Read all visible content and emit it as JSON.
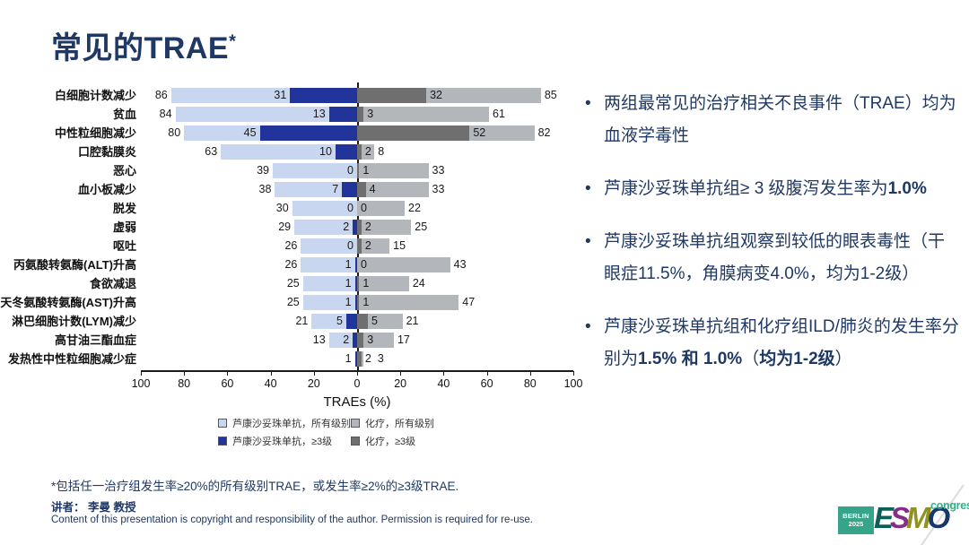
{
  "title": {
    "text": "常见的TRAE",
    "superscript": "*"
  },
  "chart_data": {
    "type": "bar",
    "orientation": "horizontal-butterfly",
    "xlabel": "TRAEs (%)",
    "x_ticks": [
      "100",
      "80",
      "60",
      "40",
      "20",
      "0",
      "20",
      "40",
      "60",
      "80",
      "100"
    ],
    "xlim_each_side": [
      0,
      100
    ],
    "grid": false,
    "legend_position": "bottom",
    "colors": {
      "sac_all": "#c9d6ef",
      "sac_g3": "#21349b",
      "chemo_all": "#b3b6bb",
      "chemo_g3": "#6f6f6f"
    },
    "legend": [
      {
        "key": "sac_all",
        "label": "芦康沙妥珠单抗，所有级别"
      },
      {
        "key": "chemo_all",
        "label": "化疗，所有级别"
      },
      {
        "key": "sac_g3",
        "label": "芦康沙妥珠单抗，≥3级"
      },
      {
        "key": "chemo_g3",
        "label": "化疗，≥3级"
      }
    ],
    "rows": [
      {
        "name": "白细胞计数减少",
        "sac_all": 86,
        "sac_g3": 31,
        "chemo_g3": 32,
        "chemo_all": 85,
        "hide_labels": []
      },
      {
        "name": "贫血",
        "sac_all": 84,
        "sac_g3": 13,
        "chemo_g3": 3,
        "chemo_all": 61,
        "hide_labels": []
      },
      {
        "name": "中性粒细胞减少",
        "sac_all": 80,
        "sac_g3": 45,
        "chemo_g3": 52,
        "chemo_all": 82,
        "hide_labels": []
      },
      {
        "name": "口腔黏膜炎",
        "sac_all": 63,
        "sac_g3": 10,
        "chemo_g3": 2,
        "chemo_all": 8,
        "hide_labels": []
      },
      {
        "name": "恶心",
        "sac_all": 39,
        "sac_g3": 0,
        "chemo_g3": 1,
        "chemo_all": 33,
        "hide_labels": []
      },
      {
        "name": "血小板减少",
        "sac_all": 38,
        "sac_g3": 7,
        "chemo_g3": 4,
        "chemo_all": 33,
        "hide_labels": []
      },
      {
        "name": "脱发",
        "sac_all": 30,
        "sac_g3": 0,
        "chemo_g3": 0,
        "chemo_all": 22,
        "hide_labels": []
      },
      {
        "name": "虚弱",
        "sac_all": 29,
        "sac_g3": 2,
        "chemo_g3": 2,
        "chemo_all": 25,
        "hide_labels": []
      },
      {
        "name": "呕吐",
        "sac_all": 26,
        "sac_g3": 0,
        "chemo_g3": 2,
        "chemo_all": 15,
        "hide_labels": []
      },
      {
        "name": "丙氨酸转氨酶(ALT)升高",
        "sac_all": 26,
        "sac_g3": 1,
        "chemo_g3": 0,
        "chemo_all": 43,
        "hide_labels": []
      },
      {
        "name": "食欲减退",
        "sac_all": 25,
        "sac_g3": 1,
        "chemo_g3": 1,
        "chemo_all": 24,
        "hide_labels": []
      },
      {
        "name": "天冬氨酸转氨酶(AST)升高",
        "sac_all": 25,
        "sac_g3": 1,
        "chemo_g3": 1,
        "chemo_all": 47,
        "hide_labels": []
      },
      {
        "name": "淋巴细胞计数(LYM)减少",
        "sac_all": 21,
        "sac_g3": 5,
        "chemo_g3": 5,
        "chemo_all": 21,
        "hide_labels": []
      },
      {
        "name": "高甘油三酯血症",
        "sac_all": 13,
        "sac_g3": 2,
        "chemo_g3": 3,
        "chemo_all": 17,
        "hide_labels": []
      },
      {
        "name": "发热性中性粒细胞减少症",
        "sac_all": 1,
        "sac_g3": 1,
        "chemo_g3": 2,
        "chemo_all": 3,
        "hide_labels": [
          "sac_all"
        ]
      }
    ]
  },
  "bullets": [
    {
      "runs": [
        {
          "text": "两组最常见的治疗相关不良事件（TRAE）均为血液学毒性",
          "bold": false
        }
      ]
    },
    {
      "runs": [
        {
          "text": "芦康沙妥珠单抗组≥ 3 级腹泻发生率为",
          "bold": false
        },
        {
          "text": "1.0%",
          "bold": true
        }
      ]
    },
    {
      "runs": [
        {
          "text": "芦康沙妥珠单抗组观察到较低的眼表毒性（干眼症11.5%，角膜病变4.0%，均为1-2级）",
          "bold": false
        }
      ]
    },
    {
      "runs": [
        {
          "text": "芦康沙妥珠单抗组和化疗组ILD/肺炎的发生率分别为",
          "bold": false
        },
        {
          "text": "1.5% 和 1.0%",
          "bold": true
        },
        {
          "text": "（",
          "bold": false
        },
        {
          "text": "均为1-2级",
          "bold": true
        },
        {
          "text": "）",
          "bold": false
        }
      ]
    }
  ],
  "footnote": "*包括任一治疗组发生率≥20%的所有级别TRAE，或发生率≥2%的≥3级TRAE.",
  "speaker_label": "讲者： 李曼 教授",
  "copyright": "Content of this presentation is copyright and responsibility of the author. Permission is required for re-use.",
  "text_color": "#1f3864",
  "logo": {
    "city": "BERLIN",
    "year": "2025",
    "city_box_color": "#35a489",
    "letters": [
      {
        "ch": "E",
        "color": "#0b5f58"
      },
      {
        "ch": "S",
        "color": "#862d86"
      },
      {
        "ch": "M",
        "color": "#8f921f"
      },
      {
        "ch": "O",
        "color": "#16386b"
      }
    ],
    "congress": "congress",
    "congress_color": "#2fb08a"
  }
}
